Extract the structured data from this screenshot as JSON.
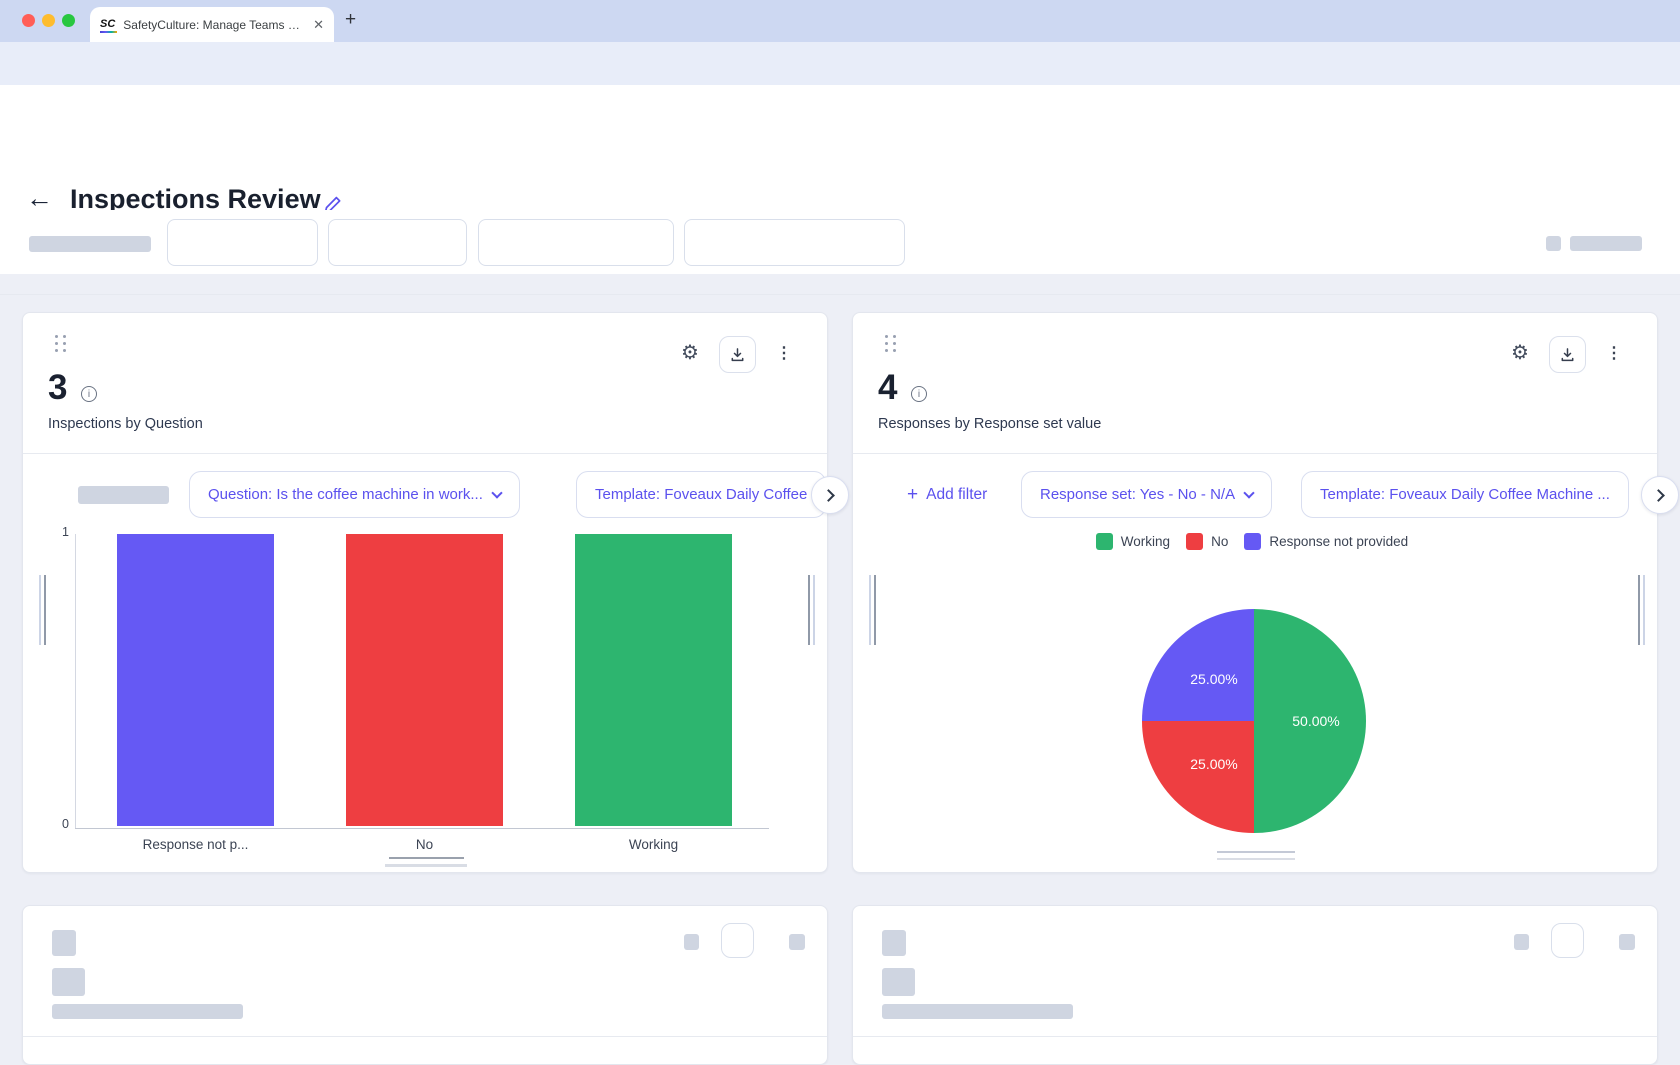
{
  "browser": {
    "tab_title": "SafetyCulture: Manage Teams and...",
    "favicon_text": "SC",
    "url": "https://app.safetyculture.com/analytics/reports/3e7aed70-4507-4b1a-8a25-f489bc87bc4d/edit"
  },
  "page": {
    "title": "Inspections Review"
  },
  "accent_color": "#6458f4",
  "left_card": {
    "metric": "3",
    "subtitle": "Inspections by Question",
    "filters": {
      "question": "Question: Is the coffee machine in work...",
      "template": "Template: Foveaux Daily Coffee"
    },
    "chart_data": {
      "type": "bar",
      "title": "Inspections by Question",
      "categories": [
        "Response not p...",
        "No",
        "Working"
      ],
      "values": [
        1,
        1,
        1
      ],
      "colors": [
        "#6559f4",
        "#ee3e41",
        "#2db56f"
      ],
      "ylim": [
        0,
        1
      ],
      "yticks": [
        "0",
        "1"
      ],
      "grid": false
    }
  },
  "right_card": {
    "metric": "4",
    "subtitle": "Responses by Response set value",
    "add_filter_label": "Add filter",
    "filters": {
      "response_set": "Response set: Yes - No - N/A",
      "template": "Template: Foveaux Daily Coffee Machine ..."
    },
    "legend": [
      {
        "label": "Working",
        "color": "#2db56f"
      },
      {
        "label": "No",
        "color": "#ee3e41"
      },
      {
        "label": "Response not provided",
        "color": "#6559f4"
      }
    ],
    "chart_data": {
      "type": "pie",
      "title": "Responses by Response set value",
      "slices": [
        {
          "label": "Working",
          "value": 50,
          "display": "50.00%",
          "color": "#2db56f"
        },
        {
          "label": "No",
          "value": 25,
          "display": "25.00%",
          "color": "#ee3e41"
        },
        {
          "label": "Response not provided",
          "value": 25,
          "display": "25.00%",
          "color": "#6559f4"
        }
      ],
      "legend_position": "top"
    }
  }
}
